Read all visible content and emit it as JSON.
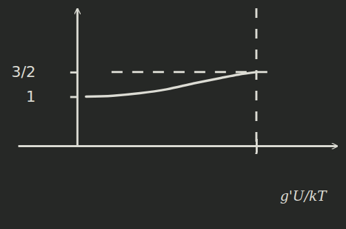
{
  "chart_data": {
    "type": "line",
    "x_label": "g'U/kT",
    "x": [
      0.05,
      0.2,
      0.35,
      0.5,
      0.65,
      0.8,
      0.9,
      1.0
    ],
    "values": [
      1.0,
      1.02,
      1.07,
      1.15,
      1.27,
      1.38,
      1.45,
      1.5
    ],
    "color": "#dcdcd4",
    "line_style": "solid",
    "xlim": [
      -0.33,
      1.45
    ],
    "xticks": [
      1
    ],
    "ylim": [
      0,
      2.8
    ],
    "yticks": [
      1,
      {
        "value": 1.5,
        "label": "3/2"
      }
    ],
    "tick_labels": "y",
    "grid": false
  }
}
